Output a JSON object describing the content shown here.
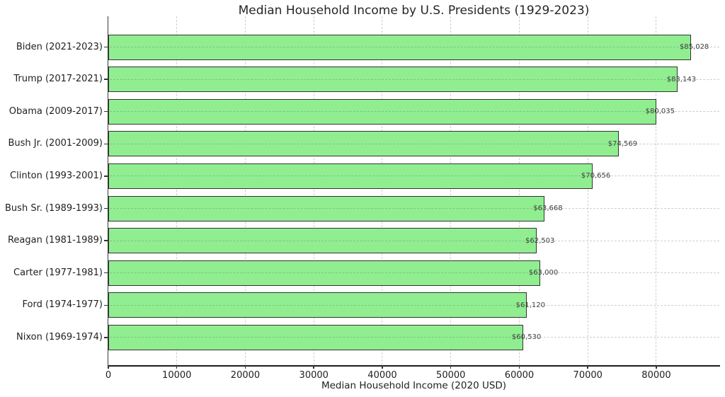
{
  "chart_data": {
    "type": "bar",
    "orientation": "horizontal",
    "title": "Median Household Income by U.S. Presidents (1929-2023)",
    "xlabel": "Median Household Income (2020 USD)",
    "ylabel": "",
    "categories": [
      "Biden (2021-2023)",
      "Trump (2017-2021)",
      "Obama (2009-2017)",
      "Bush Jr. (2001-2009)",
      "Clinton (1993-2001)",
      "Bush Sr. (1989-1993)",
      "Reagan (1981-1989)",
      "Carter (1977-1981)",
      "Ford (1974-1977)",
      "Nixon (1969-1974)"
    ],
    "values": [
      85028,
      83143,
      80035,
      74569,
      70656,
      63668,
      62503,
      63000,
      61120,
      60530
    ],
    "value_labels": [
      "$85,028",
      "$83,143",
      "$80,035",
      "$74,569",
      "$70,656",
      "$63,668",
      "$62,503",
      "$63,000",
      "$61,120",
      "$60,530"
    ],
    "xticks": [
      0,
      10000,
      20000,
      30000,
      40000,
      50000,
      60000,
      70000,
      80000
    ],
    "xtick_labels": [
      "0",
      "10000",
      "20000",
      "30000",
      "40000",
      "50000",
      "60000",
      "70000",
      "80000"
    ],
    "xlim": [
      0,
      89200
    ],
    "grid": true,
    "grid_style": "dashed",
    "legend_position": "none",
    "colors": {
      "bar_fill": "#90EE90",
      "bar_edge": "#333333",
      "grid": "#cfcfcf",
      "text": "#1f1f1f",
      "value_text": "#404040",
      "background": "#ffffff"
    }
  }
}
